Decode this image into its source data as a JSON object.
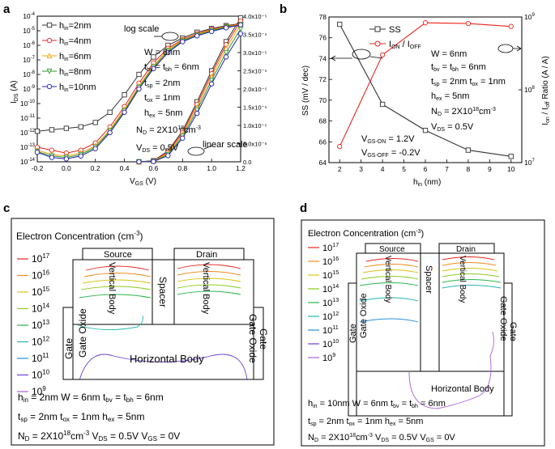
{
  "panel_labels": [
    "a",
    "b",
    "c",
    "d"
  ],
  "chart_data": [
    {
      "type": "line",
      "panel": "a",
      "title": "",
      "xlabel_main": "V",
      "xlabel_sub": "GS",
      "xlabel_unit": " (V)",
      "ylabel_main": "I",
      "ylabel_sub": "DS",
      "ylabel_unit": " (A)",
      "xlim": [
        -0.2,
        1.2
      ],
      "ylim_log": [
        -14,
        -4
      ],
      "ylim_lin": [
        0,
        4e-05
      ],
      "x_ticks": [
        "-0.2",
        "0.0",
        "0.2",
        "0.4",
        "0.6",
        "0.8",
        "1.0",
        "1.2"
      ],
      "y_ticks_left_exp": [
        "-14",
        "-13",
        "-12",
        "-11",
        "-10",
        "-9",
        "-8",
        "-7",
        "-6",
        "-5",
        "-4"
      ],
      "y_ticks_right": [
        "0.0",
        "5.0x10⁻⁶",
        "1.0x10⁻⁵",
        "1.5x10⁻⁵",
        "2.0x10⁻⁵",
        "2.5x10⁻⁵",
        "3.0x10⁻⁵",
        "3.5x10⁻⁵",
        "4.0x10⁻⁵"
      ],
      "legend_position": "top-left",
      "annotations": {
        "log_scale": "log scale",
        "linear_scale": "linear scale",
        "params": [
          "W = 6nm",
          "t_bv = t_bh = 6nm",
          "t_sp = 2nm",
          "t_ox = 1nm",
          "h_ex = 5nm",
          "N_D = 2X10^18 cm^-3",
          "V_DS = 0.5V"
        ]
      },
      "x": [
        -0.2,
        -0.1,
        0.0,
        0.1,
        0.2,
        0.3,
        0.4,
        0.5,
        0.6,
        0.7,
        0.8,
        0.9,
        1.0,
        1.1,
        1.2
      ],
      "series": [
        {
          "name": "h_in=2nm",
          "sub": "in",
          "val": "=2nm",
          "color": "#333333",
          "marker": "square",
          "log10_values": [
            -11.9,
            -11.8,
            -11.7,
            -11.6,
            -11.3,
            -10.6,
            -9.4,
            -8.0,
            -6.8,
            -6.0,
            -5.5,
            -5.1,
            -4.85,
            -4.65,
            -4.5
          ],
          "linear_values": [
            0,
            0,
            0,
            0,
            0,
            0,
            0,
            0,
            3e-07,
            3e-06,
            8.5e-06,
            1.65e-05,
            2.5e-05,
            3.3e-05,
            3.95e-05
          ]
        },
        {
          "name": "h_in=4nm",
          "sub": "in",
          "val": "=4nm",
          "color": "#e8241c",
          "marker": "circle",
          "log10_values": [
            -13.0,
            -13.2,
            -13.4,
            -13.2,
            -12.7,
            -11.6,
            -10.2,
            -8.6,
            -7.2,
            -6.2,
            -5.6,
            -5.2,
            -4.9,
            -4.7,
            -4.5
          ],
          "linear_values": [
            0,
            0,
            0,
            0,
            0,
            0,
            0,
            0,
            2e-07,
            2.7e-06,
            8e-06,
            1.58e-05,
            2.42e-05,
            3.22e-05,
            3.87e-05
          ]
        },
        {
          "name": "h_in=6nm",
          "sub": "in",
          "val": "=6nm",
          "color": "#f5a000",
          "marker": "triangle",
          "log10_values": [
            -13.2,
            -13.5,
            -13.6,
            -13.4,
            -12.9,
            -11.8,
            -10.4,
            -8.8,
            -7.4,
            -6.3,
            -5.65,
            -5.25,
            -4.95,
            -4.72,
            -4.55
          ],
          "linear_values": [
            0,
            0,
            0,
            0,
            0,
            0,
            0,
            0,
            1.5e-07,
            2.4e-06,
            7.5e-06,
            1.5e-05,
            2.34e-05,
            3.12e-05,
            3.77e-05
          ]
        },
        {
          "name": "h_in=8nm",
          "sub": "in",
          "val": "=8nm",
          "color": "#2e9a2e",
          "marker": "down-triangle",
          "log10_values": [
            -13.3,
            -13.6,
            -13.7,
            -13.5,
            -13.0,
            -11.9,
            -10.5,
            -8.9,
            -7.5,
            -6.4,
            -5.7,
            -5.3,
            -5.0,
            -4.75,
            -4.58
          ],
          "linear_values": [
            0,
            0,
            0,
            0,
            0,
            0,
            0,
            0,
            1e-07,
            2e-06,
            7e-06,
            1.42e-05,
            2.24e-05,
            3e-05,
            3.65e-05
          ]
        },
        {
          "name": "h_in=10nm",
          "sub": "in",
          "val": "=10nm",
          "color": "#2020b0",
          "marker": "circle",
          "log10_values": [
            -13.35,
            -13.7,
            -13.8,
            -13.6,
            -13.1,
            -12.0,
            -10.6,
            -9.0,
            -7.6,
            -6.5,
            -5.75,
            -5.35,
            -5.05,
            -4.8,
            -4.6
          ],
          "linear_values": [
            0,
            0,
            0,
            0,
            0,
            0,
            0,
            0,
            8e-08,
            1.7e-06,
            6.5e-06,
            1.33e-05,
            2.14e-05,
            2.88e-05,
            3.52e-05
          ]
        }
      ]
    },
    {
      "type": "line",
      "panel": "b",
      "xlabel_main": "h",
      "xlabel_sub": "in",
      "xlabel_unit": " (nm)",
      "ylabel_left": "SS (mV / dec)",
      "ylabel_right": "I_on / I_off Ratio (A / A)",
      "xlim": [
        1.5,
        10.5
      ],
      "ylim_left": [
        64,
        78
      ],
      "ylim_right_log": [
        7,
        9
      ],
      "x_ticks": [
        "2",
        "3",
        "4",
        "5",
        "6",
        "7",
        "8",
        "9",
        "10"
      ],
      "y_ticks_left": [
        "64",
        "66",
        "68",
        "70",
        "72",
        "74",
        "76",
        "78"
      ],
      "y_ticks_right_exp": [
        "7",
        "8",
        "9"
      ],
      "legend": [
        "SS",
        "I_ON / I_OFF"
      ],
      "annotations": {
        "params": [
          "W = 6nm",
          "t_bv = t_bh = 6nm",
          "t_sp = 2nm  t_ox = 1nm",
          "h_ex = 5nm",
          "N_D = 2X10^18 cm^-3",
          "V_DS = 0.5V"
        ],
        "vgs": [
          "V_GS-ON = 1.2V",
          "V_GS-OFF = -0.2V"
        ]
      },
      "series": [
        {
          "name": "SS",
          "axis": "left",
          "color": "#333333",
          "marker": "square",
          "x": [
            2,
            4,
            6,
            8,
            10
          ],
          "values": [
            77.3,
            69.6,
            67.1,
            65.2,
            64.6
          ]
        },
        {
          "name": "I_ON / I_OFF",
          "axis": "right",
          "color": "#e8241c",
          "marker": "circle",
          "x": [
            2,
            4,
            6,
            8,
            10
          ],
          "log10_values": [
            7.22,
            8.48,
            8.92,
            8.91,
            8.87
          ]
        }
      ]
    },
    {
      "type": "heatmap",
      "panel": "c",
      "title": "Electron Concentration (cm",
      "title_sup": "-3",
      "title_end": ")",
      "contour_levels": [
        {
          "exp": "17",
          "color": "#e8241c"
        },
        {
          "exp": "16",
          "color": "#f28a1e"
        },
        {
          "exp": "15",
          "color": "#d8c414"
        },
        {
          "exp": "14",
          "color": "#8ccb1e"
        },
        {
          "exp": "13",
          "color": "#2bb34a"
        },
        {
          "exp": "12",
          "color": "#22b6b0"
        },
        {
          "exp": "11",
          "color": "#2a8fd8"
        },
        {
          "exp": "10",
          "color": "#6d3fd6"
        },
        {
          "exp": "9",
          "color": "#a860d8"
        }
      ],
      "region_labels": {
        "source": "Source",
        "drain": "Drain",
        "spacer": "Spacer",
        "vbody": "Vertical Body",
        "gate_oxide": "Gate Oxide",
        "gate": "Gate",
        "hbody": "Horizontal Body"
      },
      "caption": [
        "h_in = 2nm W = 6nm t_bv = t_bh = 6nm",
        "t_sp = 2nm t_ox = 1nm h_ex = 5nm",
        "N_D = 2X10^18 cm^-3 V_DS = 0.5V V_GS = 0V"
      ]
    },
    {
      "type": "heatmap",
      "panel": "d",
      "title": "Electron Concentration (cm",
      "title_sup": "-3",
      "title_end": ")",
      "contour_levels": [
        {
          "exp": "17",
          "color": "#e8241c"
        },
        {
          "exp": "16",
          "color": "#f28a1e"
        },
        {
          "exp": "15",
          "color": "#d8c414"
        },
        {
          "exp": "14",
          "color": "#8ccb1e"
        },
        {
          "exp": "13",
          "color": "#2bb34a"
        },
        {
          "exp": "12",
          "color": "#22b6b0"
        },
        {
          "exp": "11",
          "color": "#2a8fd8"
        },
        {
          "exp": "10",
          "color": "#6d3fd6"
        },
        {
          "exp": "9",
          "color": "#a860d8"
        }
      ],
      "region_labels": {
        "source": "Source",
        "drain": "Drain",
        "spacer": "Spacer",
        "vbody": "Vertical Body",
        "gate_oxide": "Gate Oxide",
        "gate": "Gate",
        "hbody": "Horizontal Body"
      },
      "caption": [
        "h_in = 10nm W = 6nm t_bv = t_bh = 6nm",
        "t_sp = 2nm t_ox = 1nm h_ex = 5nm",
        "N_D = 2X10^18 cm^-3 V_DS = 0.5V V_GS = 0V"
      ]
    }
  ]
}
